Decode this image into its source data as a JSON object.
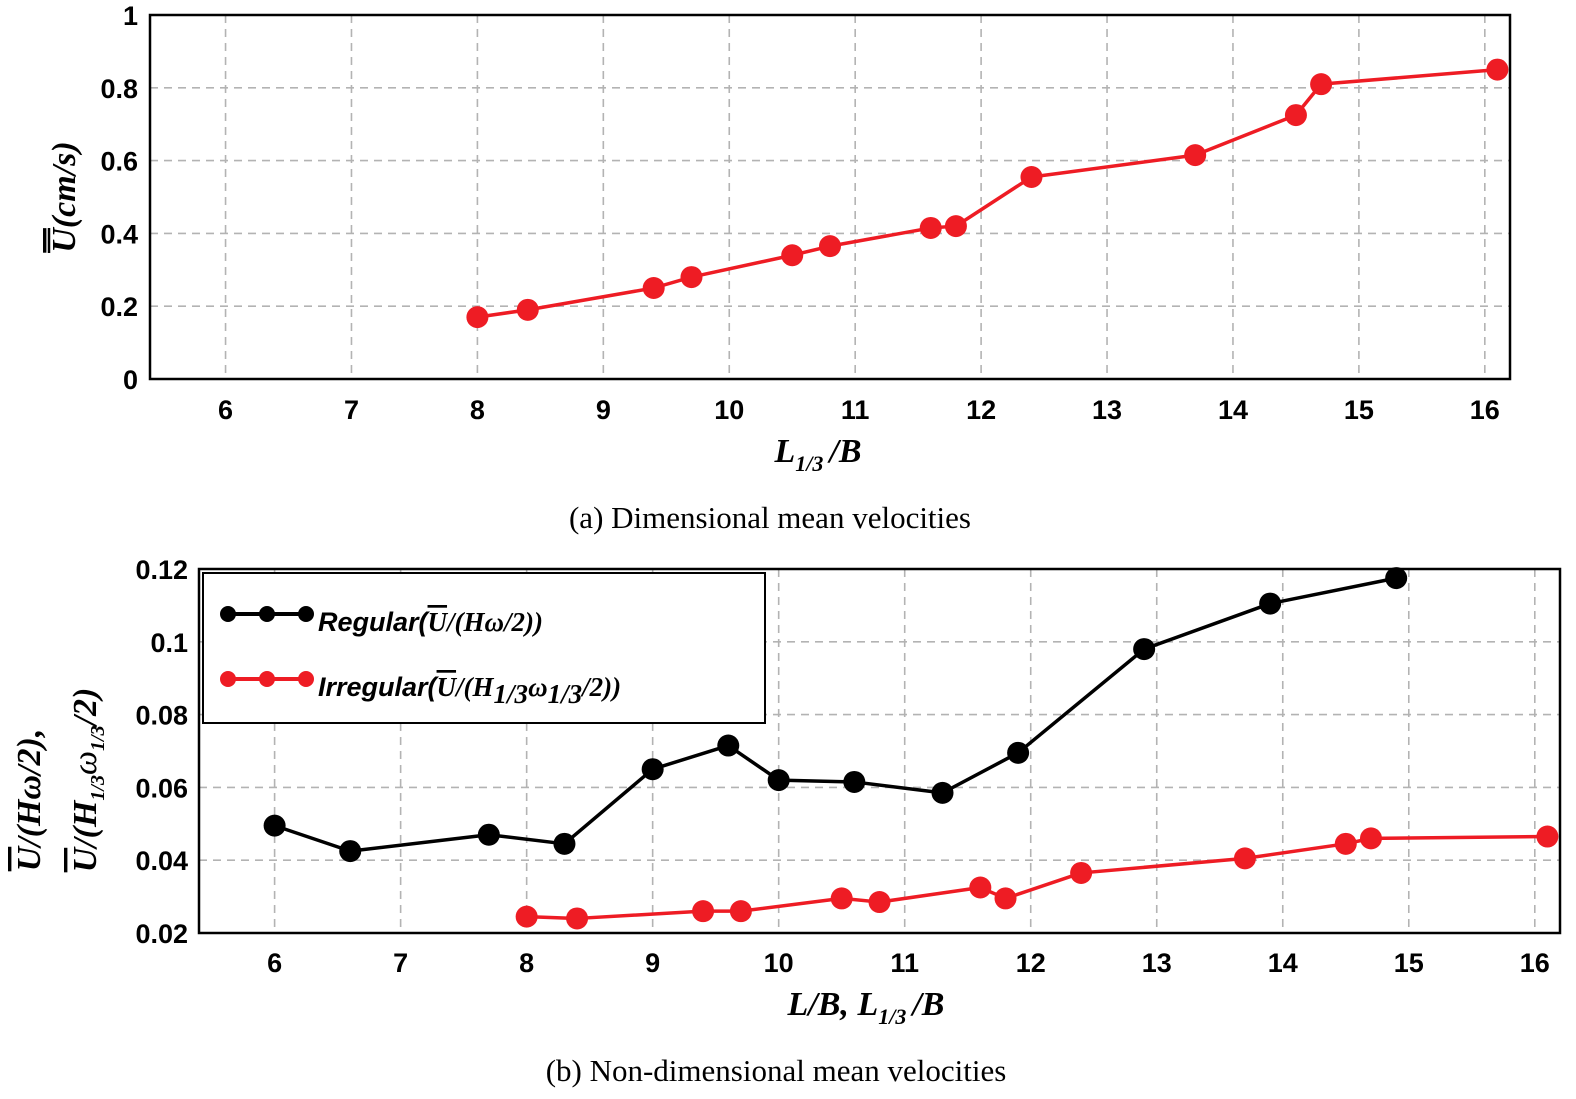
{
  "colors": {
    "red": "#ee1c24",
    "black": "#000000",
    "grid": "#b3b3b3"
  },
  "chart_data": [
    {
      "type": "line",
      "title": "",
      "caption": "(a) Dimensional mean velocities",
      "xlabel": {
        "base": "L",
        "sub": "1/3",
        "tail": "/B"
      },
      "ylabel": {
        "bar": "U",
        "tail": "(cm/s)"
      },
      "xlim": [
        5.4,
        16.2
      ],
      "ylim": [
        0,
        1
      ],
      "xticks": [
        6,
        7,
        8,
        9,
        10,
        11,
        12,
        13,
        14,
        15,
        16
      ],
      "yticks": [
        0,
        0.2,
        0.4,
        0.6,
        0.8,
        1
      ],
      "ytick_labels": [
        "0",
        "0.2",
        "0.4",
        "0.6",
        "0.8",
        "1"
      ],
      "grid": true,
      "series": [
        {
          "name": "Dimensional mean velocity",
          "color": "#ee1c24",
          "x": [
            8.0,
            8.4,
            9.4,
            9.7,
            10.5,
            10.8,
            11.6,
            11.8,
            12.4,
            13.7,
            14.5,
            14.7,
            16.1
          ],
          "y": [
            0.17,
            0.19,
            0.25,
            0.28,
            0.34,
            0.365,
            0.415,
            0.42,
            0.555,
            0.615,
            0.725,
            0.81,
            0.85
          ]
        }
      ]
    },
    {
      "type": "line",
      "title": "",
      "caption": "(b) Non-dimensional mean velocities",
      "xlabel": {
        "pre": "L/B, ",
        "base": "L",
        "sub": "1/3",
        "tail": "/B"
      },
      "ylabel": {
        "line1": {
          "bar": "U",
          "tail": "/(Hω/2),"
        },
        "line2": {
          "bar": "U",
          "mid": "/(H",
          "sub1": "1/3",
          "omega": "ω",
          "sub2": "1/3",
          "tail": "/2)"
        }
      },
      "xlim": [
        5.4,
        16.2
      ],
      "ylim": [
        0.02,
        0.12
      ],
      "xticks": [
        6,
        7,
        8,
        9,
        10,
        11,
        12,
        13,
        14,
        15,
        16
      ],
      "yticks": [
        0.02,
        0.04,
        0.06,
        0.08,
        0.1,
        0.12
      ],
      "ytick_labels": [
        "0.02",
        "0.04",
        "0.06",
        "0.08",
        "0.1",
        "0.12"
      ],
      "grid": true,
      "legend_position": "top-left",
      "series": [
        {
          "name": "Regular",
          "legend": {
            "pre": "Regular(",
            "bar": "U",
            "tail": "/(Hω/2))"
          },
          "color": "#000000",
          "x": [
            6.0,
            6.6,
            7.7,
            8.3,
            9.0,
            9.6,
            10.0,
            10.6,
            11.3,
            11.9,
            12.9,
            13.9,
            14.9
          ],
          "y": [
            0.0495,
            0.0425,
            0.047,
            0.0445,
            0.065,
            0.0715,
            0.062,
            0.0615,
            0.0585,
            0.0695,
            0.098,
            0.1105,
            0.1175
          ]
        },
        {
          "name": "Irregular",
          "legend": {
            "pre": "Irregular(",
            "bar": "U",
            "mid": "/(H",
            "sub1": "1/3",
            "omega": "ω",
            "sub2": "1/3",
            "tail": "/2))"
          },
          "color": "#ee1c24",
          "x": [
            8.0,
            8.4,
            9.4,
            9.7,
            10.5,
            10.8,
            11.6,
            11.8,
            12.4,
            13.7,
            14.5,
            14.7,
            16.1
          ],
          "y": [
            0.0245,
            0.024,
            0.026,
            0.026,
            0.0295,
            0.0285,
            0.0325,
            0.0295,
            0.0365,
            0.0405,
            0.0445,
            0.046,
            0.0465
          ]
        }
      ]
    }
  ]
}
